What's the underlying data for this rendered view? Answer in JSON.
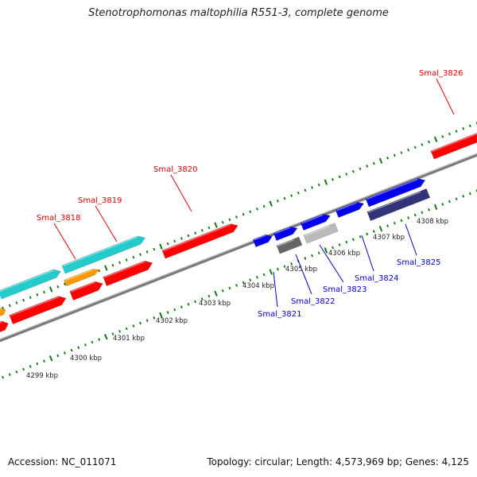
{
  "title": "Stenotrophomonas maltophilia R551-3, complete genome",
  "footer": {
    "accession": "Accession: NC_011071",
    "summary": "Topology: circular; Length: 4,573,969 bp; Genes: 4,125"
  },
  "colors": {
    "label_red": "#e00000",
    "label_blue": "#0000cc",
    "tick_green": "#117711",
    "backbone": "#888888",
    "feature_red": "#ff0000",
    "feature_cyan": "#22cccc",
    "feature_orange": "#ff9900",
    "feature_blue": "#0000ee",
    "feature_navy": "#333377",
    "feature_dark_gray": "#666666",
    "feature_light_gray": "#bbbbbb"
  },
  "scale_labels": [
    "4299 kbp",
    "4300 kbp",
    "4301 kbp",
    "4302 kbp",
    "4303 kbp",
    "4304 kbp",
    "4305 kbp",
    "4306 kbp",
    "4307 kbp",
    "4308 kbp"
  ],
  "upper_labels": [
    "Smal_3818",
    "Smal_3819",
    "Smal_3820",
    "Smal_3826"
  ],
  "lower_labels": [
    "Smal_3821",
    "Smal_3822",
    "Smal_3823",
    "Smal_3824",
    "Smal_3825"
  ]
}
